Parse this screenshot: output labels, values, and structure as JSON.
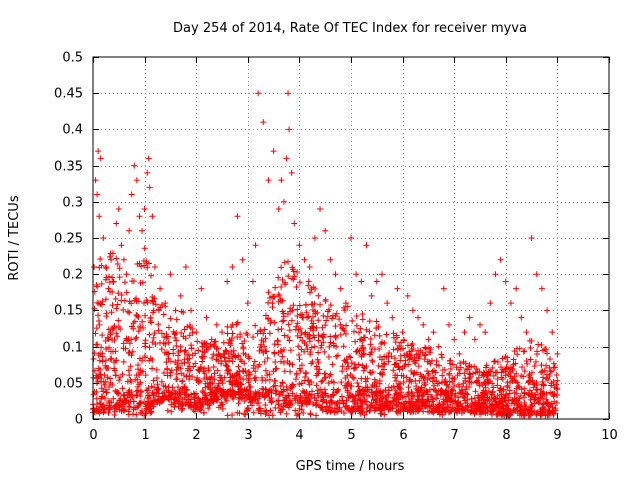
{
  "chart_data": {
    "type": "scatter",
    "title": "Day 254 of 2014, Rate Of TEC Index for receiver myva",
    "xlabel": "GPS time / hours",
    "ylabel": "ROTI / TECUs",
    "xlim": [
      0,
      10
    ],
    "ylim": [
      0,
      0.5
    ],
    "x_ticks": [
      0,
      1,
      2,
      3,
      4,
      5,
      6,
      7,
      8,
      9,
      10
    ],
    "y_ticks": [
      0,
      0.05,
      0.1,
      0.15,
      0.2,
      0.25,
      0.3,
      0.35,
      0.4,
      0.45,
      0.5
    ],
    "x_tick_labels": [
      "0",
      "1",
      "2",
      "3",
      "4",
      "5",
      "6",
      "7",
      "8",
      "9",
      "10"
    ],
    "y_tick_labels": [
      "0",
      "0.05",
      "0.1",
      "0.15",
      "0.2",
      "0.25",
      "0.3",
      "0.35",
      "0.4",
      "0.45",
      "0.5"
    ],
    "grid": true,
    "marker": "+",
    "color": "#ff0000",
    "series": [
      {
        "name": "ROTI",
        "points": [
          [
            0.02,
            0.21
          ],
          [
            0.05,
            0.33
          ],
          [
            0.08,
            0.31
          ],
          [
            0.1,
            0.37
          ],
          [
            0.12,
            0.28
          ],
          [
            0.15,
            0.36
          ],
          [
            0.2,
            0.25
          ],
          [
            0.25,
            0.21
          ],
          [
            0.3,
            0.18
          ],
          [
            0.35,
            0.22
          ],
          [
            0.4,
            0.19
          ],
          [
            0.45,
            0.27
          ],
          [
            0.5,
            0.29
          ],
          [
            0.55,
            0.24
          ],
          [
            0.6,
            0.22
          ],
          [
            0.65,
            0.2
          ],
          [
            0.7,
            0.26
          ],
          [
            0.75,
            0.31
          ],
          [
            0.8,
            0.35
          ],
          [
            0.85,
            0.33
          ],
          [
            0.9,
            0.28
          ],
          [
            0.95,
            0.26
          ],
          [
            1.0,
            0.29
          ],
          [
            1.05,
            0.34
          ],
          [
            1.08,
            0.36
          ],
          [
            1.1,
            0.32
          ],
          [
            1.15,
            0.28
          ],
          [
            1.2,
            0.21
          ],
          [
            1.3,
            0.18
          ],
          [
            1.4,
            0.16
          ],
          [
            1.5,
            0.2
          ],
          [
            1.6,
            0.15
          ],
          [
            1.7,
            0.17
          ],
          [
            1.8,
            0.21
          ],
          [
            1.9,
            0.15
          ],
          [
            2.0,
            0.12
          ],
          [
            2.1,
            0.18
          ],
          [
            2.2,
            0.14
          ],
          [
            2.3,
            0.11
          ],
          [
            2.4,
            0.13
          ],
          [
            2.5,
            0.12
          ],
          [
            2.6,
            0.19
          ],
          [
            2.7,
            0.21
          ],
          [
            2.8,
            0.28
          ],
          [
            2.9,
            0.22
          ],
          [
            3.0,
            0.16
          ],
          [
            3.1,
            0.19
          ],
          [
            3.15,
            0.24
          ],
          [
            3.2,
            0.45
          ],
          [
            3.3,
            0.41
          ],
          [
            3.4,
            0.33
          ],
          [
            3.5,
            0.37
          ],
          [
            3.6,
            0.29
          ],
          [
            3.65,
            0.33
          ],
          [
            3.7,
            0.3
          ],
          [
            3.75,
            0.36
          ],
          [
            3.78,
            0.45
          ],
          [
            3.8,
            0.4
          ],
          [
            3.85,
            0.34
          ],
          [
            3.9,
            0.27
          ],
          [
            4.0,
            0.24
          ],
          [
            4.1,
            0.22
          ],
          [
            4.2,
            0.21
          ],
          [
            4.3,
            0.25
          ],
          [
            4.4,
            0.29
          ],
          [
            4.5,
            0.26
          ],
          [
            4.6,
            0.22
          ],
          [
            4.7,
            0.2
          ],
          [
            4.8,
            0.18
          ],
          [
            4.9,
            0.16
          ],
          [
            5.0,
            0.25
          ],
          [
            5.1,
            0.2
          ],
          [
            5.2,
            0.19
          ],
          [
            5.3,
            0.24
          ],
          [
            5.4,
            0.17
          ],
          [
            5.5,
            0.19
          ],
          [
            5.6,
            0.2
          ],
          [
            5.7,
            0.16
          ],
          [
            5.8,
            0.14
          ],
          [
            5.9,
            0.18
          ],
          [
            6.0,
            0.12
          ],
          [
            6.1,
            0.17
          ],
          [
            6.2,
            0.15
          ],
          [
            6.3,
            0.14
          ],
          [
            6.4,
            0.13
          ],
          [
            6.5,
            0.11
          ],
          [
            6.6,
            0.12
          ],
          [
            6.7,
            0.1
          ],
          [
            6.8,
            0.18
          ],
          [
            6.9,
            0.13
          ],
          [
            7.0,
            0.11
          ],
          [
            7.1,
            0.09
          ],
          [
            7.2,
            0.12
          ],
          [
            7.3,
            0.14
          ],
          [
            7.4,
            0.11
          ],
          [
            7.5,
            0.13
          ],
          [
            7.6,
            0.12
          ],
          [
            7.7,
            0.16
          ],
          [
            7.8,
            0.2
          ],
          [
            7.9,
            0.22
          ],
          [
            8.0,
            0.19
          ],
          [
            8.1,
            0.16
          ],
          [
            8.2,
            0.18
          ],
          [
            8.3,
            0.14
          ],
          [
            8.4,
            0.12
          ],
          [
            8.5,
            0.25
          ],
          [
            8.6,
            0.2
          ],
          [
            8.7,
            0.18
          ],
          [
            8.8,
            0.15
          ],
          [
            8.9,
            0.12
          ],
          [
            9.0,
            0.09
          ]
        ]
      }
    ],
    "density_envelope": {
      "hours": [
        0.0,
        0.25,
        0.5,
        0.75,
        1.0,
        1.25,
        1.5,
        1.75,
        2.0,
        2.25,
        2.5,
        2.75,
        3.0,
        3.25,
        3.5,
        3.75,
        4.0,
        4.25,
        4.5,
        4.75,
        5.0,
        5.25,
        5.5,
        5.75,
        6.0,
        6.25,
        6.5,
        6.75,
        7.0,
        7.25,
        7.5,
        7.75,
        8.0,
        8.25,
        8.5,
        8.75,
        9.0
      ],
      "low": [
        0.005,
        0.01,
        0.01,
        0.015,
        0.01,
        0.02,
        0.03,
        0.02,
        0.01,
        0.02,
        0.03,
        0.03,
        0.02,
        0.03,
        0.02,
        0.02,
        0.02,
        0.02,
        0.01,
        0.01,
        0.01,
        0.01,
        0.01,
        0.01,
        0.01,
        0.01,
        0.01,
        0.01,
        0.01,
        0.01,
        0.01,
        0.005,
        0.005,
        0.005,
        0.005,
        0.005,
        0.005
      ],
      "high": [
        0.2,
        0.24,
        0.22,
        0.2,
        0.24,
        0.17,
        0.15,
        0.15,
        0.12,
        0.11,
        0.11,
        0.16,
        0.12,
        0.14,
        0.2,
        0.22,
        0.2,
        0.19,
        0.18,
        0.15,
        0.16,
        0.15,
        0.14,
        0.12,
        0.12,
        0.1,
        0.1,
        0.09,
        0.08,
        0.08,
        0.07,
        0.08,
        0.09,
        0.1,
        0.11,
        0.1,
        0.07
      ]
    }
  }
}
